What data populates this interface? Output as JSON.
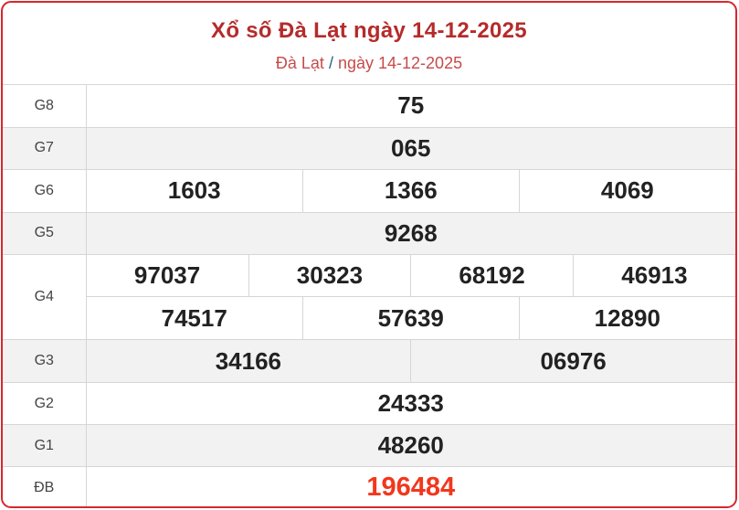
{
  "header": {
    "title": "Xổ số Đà Lạt ngày 14-12-2025",
    "breadcrumb_place": "Đà Lạt",
    "breadcrumb_sep": "/",
    "breadcrumb_date": "ngày 14-12-2025"
  },
  "prizes": [
    {
      "label": "G8",
      "numbers": [
        "75"
      ]
    },
    {
      "label": "G7",
      "numbers": [
        "065"
      ]
    },
    {
      "label": "G6",
      "numbers": [
        "1603",
        "1366",
        "4069"
      ]
    },
    {
      "label": "G5",
      "numbers": [
        "9268"
      ]
    },
    {
      "label": "G4",
      "numbers": [
        "97037",
        "30323",
        "68192",
        "46913",
        "74517",
        "57639",
        "12890"
      ]
    },
    {
      "label": "G3",
      "numbers": [
        "34166",
        "06976"
      ]
    },
    {
      "label": "G2",
      "numbers": [
        "24333"
      ]
    },
    {
      "label": "G1",
      "numbers": [
        "48260"
      ]
    },
    {
      "label": "ĐB",
      "numbers": [
        "196484"
      ]
    }
  ],
  "colors": {
    "border": "#d9262e",
    "title": "#b52b2b",
    "special": "#f2371d"
  }
}
